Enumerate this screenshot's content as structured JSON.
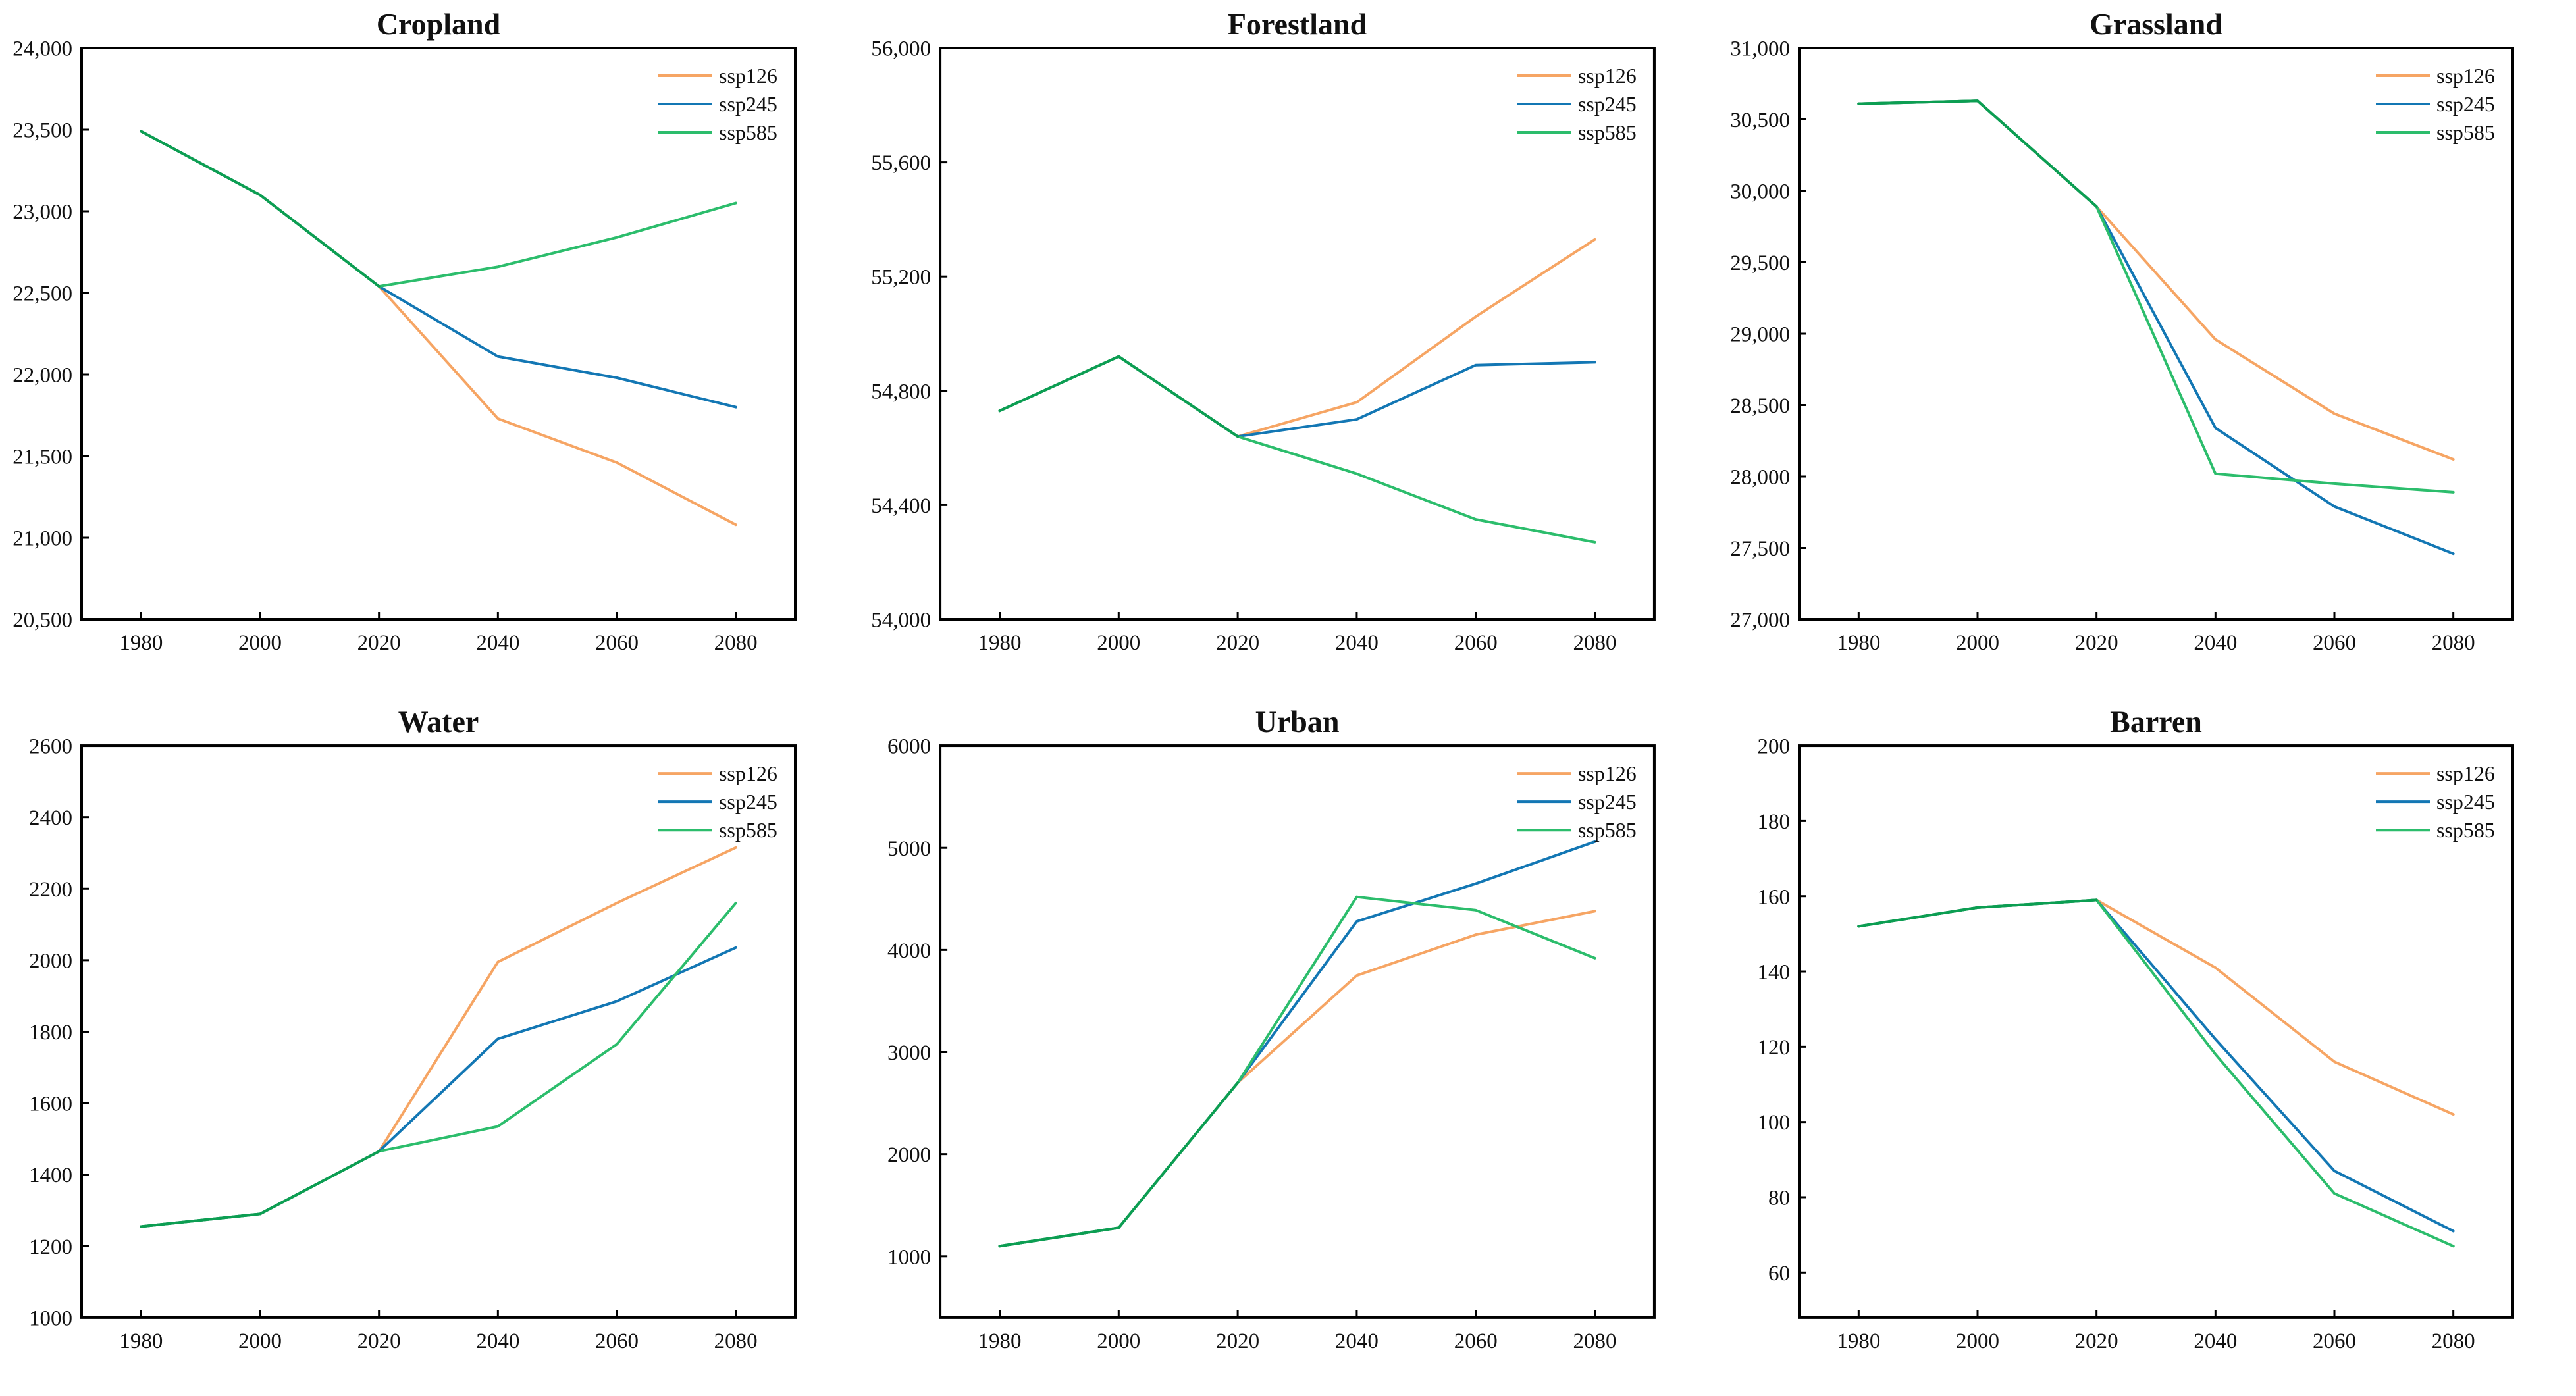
{
  "figure": {
    "background": "#ffffff",
    "description": "Six line charts of land-use area projections under three SSP scenarios"
  },
  "palette": {
    "ssp126": "#F6A564",
    "ssp245": "#1377B4",
    "ssp585": "#2CBD6C",
    "historical_overlap": "#0C9E52",
    "axis": "#000000",
    "text": "#111111",
    "background": "#ffffff"
  },
  "legend": {
    "labels": [
      "ssp126",
      "ssp245",
      "ssp585"
    ],
    "position": "top-right"
  },
  "axes": {
    "x_ticks": [
      1980,
      2000,
      2020,
      2040,
      2060,
      2080
    ],
    "xlim": [
      1970,
      2090
    ],
    "tick_direction": "in",
    "grid": false
  },
  "chart_data": [
    {
      "type": "line",
      "title": "Cropland",
      "x": [
        1980,
        2000,
        2020,
        2040,
        2060,
        2080
      ],
      "ylim": [
        20500,
        24000
      ],
      "yticks": [
        20500,
        21000,
        21500,
        22000,
        22500,
        23000,
        23500,
        24000
      ],
      "tick_format": "comma",
      "series": [
        {
          "name": "ssp126",
          "values": [
            23490,
            23100,
            22540,
            21730,
            21460,
            21080
          ]
        },
        {
          "name": "ssp245",
          "values": [
            23490,
            23100,
            22540,
            22110,
            21980,
            21800
          ]
        },
        {
          "name": "ssp585",
          "values": [
            23490,
            23100,
            22540,
            22660,
            22840,
            23050
          ]
        }
      ]
    },
    {
      "type": "line",
      "title": "Forestland",
      "x": [
        1980,
        2000,
        2020,
        2040,
        2060,
        2080
      ],
      "ylim": [
        54000,
        56000
      ],
      "yticks": [
        54000,
        54400,
        54800,
        55200,
        55600,
        56000
      ],
      "tick_format": "comma",
      "series": [
        {
          "name": "ssp126",
          "values": [
            54730,
            54920,
            54640,
            54760,
            55060,
            55330
          ]
        },
        {
          "name": "ssp245",
          "values": [
            54730,
            54920,
            54640,
            54700,
            54890,
            54900
          ]
        },
        {
          "name": "ssp585",
          "values": [
            54730,
            54920,
            54640,
            54510,
            54350,
            54270
          ]
        }
      ]
    },
    {
      "type": "line",
      "title": "Grassland",
      "x": [
        1980,
        2000,
        2020,
        2040,
        2060,
        2080
      ],
      "ylim": [
        27000,
        31000
      ],
      "yticks": [
        27000,
        27500,
        28000,
        28500,
        29000,
        29500,
        30000,
        30500,
        31000
      ],
      "tick_format": "comma",
      "series": [
        {
          "name": "ssp126",
          "values": [
            30610,
            30630,
            29890,
            28960,
            28440,
            28120
          ]
        },
        {
          "name": "ssp245",
          "values": [
            30610,
            30630,
            29890,
            28340,
            27790,
            27460
          ]
        },
        {
          "name": "ssp585",
          "values": [
            30610,
            30630,
            29890,
            28020,
            27950,
            27890
          ]
        }
      ]
    },
    {
      "type": "line",
      "title": "Water",
      "x": [
        1980,
        2000,
        2020,
        2040,
        2060,
        2080
      ],
      "ylim": [
        1000,
        2600
      ],
      "yticks": [
        1000,
        1200,
        1400,
        1600,
        1800,
        2000,
        2200,
        2400,
        2600
      ],
      "tick_format": "plain",
      "series": [
        {
          "name": "ssp126",
          "values": [
            1255,
            1290,
            1465,
            1995,
            2160,
            2315
          ]
        },
        {
          "name": "ssp245",
          "values": [
            1255,
            1290,
            1465,
            1780,
            1885,
            2035
          ]
        },
        {
          "name": "ssp585",
          "values": [
            1255,
            1290,
            1465,
            1535,
            1765,
            2160
          ]
        }
      ]
    },
    {
      "type": "line",
      "title": "Urban",
      "x": [
        1980,
        2000,
        2020,
        2040,
        2060,
        2080
      ],
      "ylim": [
        400,
        6000
      ],
      "yticks": [
        1000,
        2000,
        3000,
        4000,
        5000,
        6000
      ],
      "tick_format": "plain",
      "series": [
        {
          "name": "ssp126",
          "values": [
            1100,
            1280,
            2700,
            3750,
            4150,
            4380
          ]
        },
        {
          "name": "ssp245",
          "values": [
            1100,
            1280,
            2700,
            4280,
            4650,
            5060
          ]
        },
        {
          "name": "ssp585",
          "values": [
            1100,
            1280,
            2700,
            4520,
            4390,
            3920
          ]
        }
      ]
    },
    {
      "type": "line",
      "title": "Barren",
      "x": [
        1980,
        2000,
        2020,
        2040,
        2060,
        2080
      ],
      "ylim": [
        48,
        200
      ],
      "yticks": [
        60,
        80,
        100,
        120,
        140,
        160,
        180,
        200
      ],
      "tick_format": "plain",
      "series": [
        {
          "name": "ssp126",
          "values": [
            152,
            157,
            159,
            141,
            116,
            102
          ]
        },
        {
          "name": "ssp245",
          "values": [
            152,
            157,
            159,
            122,
            87,
            71
          ]
        },
        {
          "name": "ssp585",
          "values": [
            152,
            157,
            159,
            118,
            81,
            67
          ]
        }
      ]
    }
  ]
}
